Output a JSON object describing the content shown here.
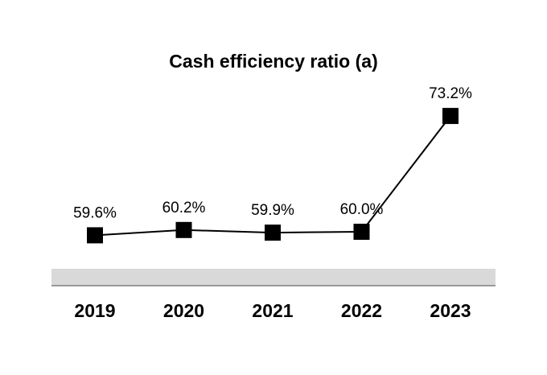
{
  "chart_data": {
    "type": "line",
    "title": "Cash efficiency ratio (a)",
    "xlabel": "",
    "ylabel": "",
    "categories": [
      "2019",
      "2020",
      "2021",
      "2022",
      "2023"
    ],
    "series": [
      {
        "name": "Cash efficiency ratio",
        "values": [
          59.6,
          60.2,
          59.9,
          60.0,
          73.2
        ],
        "labels": [
          "59.6%",
          "60.2%",
          "59.9%",
          "60.0%",
          "73.2%"
        ]
      }
    ],
    "grid": false,
    "legend": "none",
    "colors": {
      "line": "#000000",
      "marker": "#000000",
      "band": "#d9d9d9",
      "axis": "#7f7f7f"
    }
  }
}
